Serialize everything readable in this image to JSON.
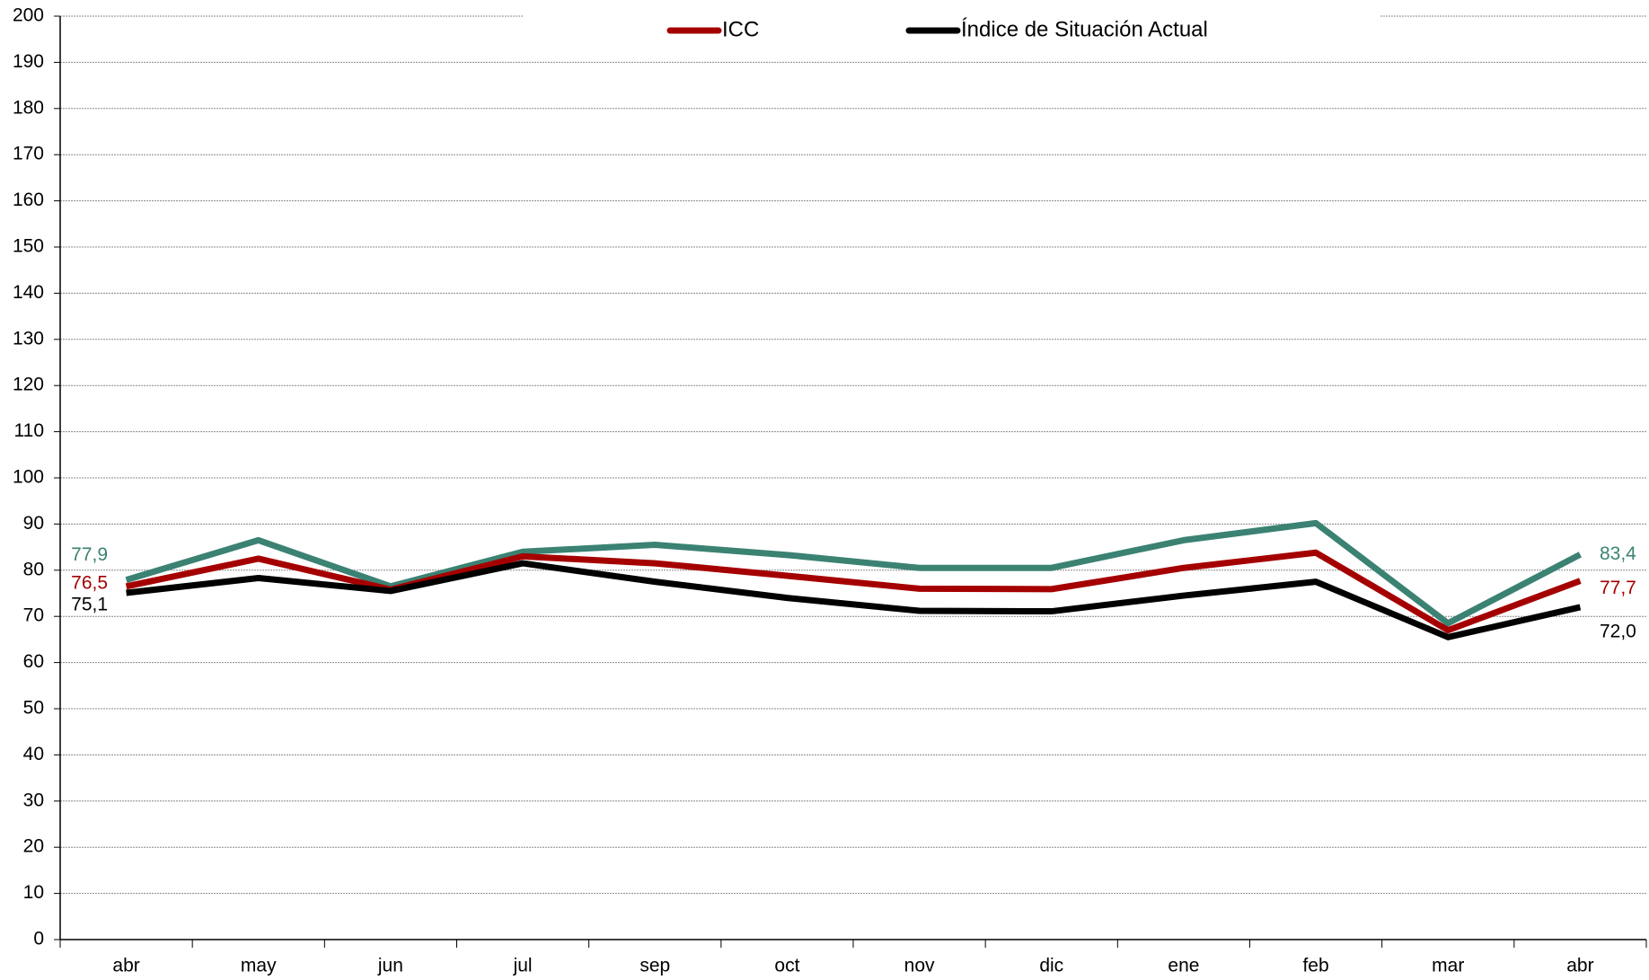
{
  "chart_data": {
    "type": "line",
    "categories": [
      "abr",
      "may",
      "jun",
      "jul",
      "sep",
      "oct",
      "nov",
      "dic",
      "ene",
      "feb",
      "mar",
      "abr"
    ],
    "series": [
      {
        "color": "#3b8273",
        "values": [
          77.9,
          86.5,
          76.5,
          84,
          85.5,
          83.3,
          80.5,
          80.5,
          86.5,
          90.2,
          68.5,
          83.4
        ],
        "value_labels": [
          "77,9",
          null,
          null,
          null,
          null,
          null,
          null,
          null,
          null,
          null,
          null,
          "83,4"
        ]
      },
      {
        "name": "ICC",
        "color": "#a50000",
        "values": [
          76.5,
          82.5,
          75.8,
          83,
          81.5,
          78.8,
          76,
          75.9,
          80.5,
          83.8,
          67,
          77.7
        ],
        "value_labels": [
          "76,5",
          null,
          null,
          null,
          null,
          null,
          null,
          null,
          null,
          null,
          null,
          "77,7"
        ]
      },
      {
        "name": "Índice de Situación Actual",
        "color": "#000000",
        "values": [
          75.1,
          78.3,
          75.5,
          81.5,
          77.5,
          74,
          71.2,
          71.1,
          74.5,
          77.5,
          65.5,
          72.0
        ],
        "value_labels": [
          "75,1",
          null,
          null,
          null,
          null,
          null,
          null,
          null,
          null,
          null,
          null,
          "72,0"
        ]
      }
    ],
    "ylim": [
      0,
      200
    ],
    "yticks": [
      0,
      10,
      20,
      30,
      40,
      50,
      60,
      70,
      80,
      90,
      100,
      110,
      120,
      130,
      140,
      150,
      160,
      170,
      180,
      190,
      200
    ],
    "grid": true
  }
}
